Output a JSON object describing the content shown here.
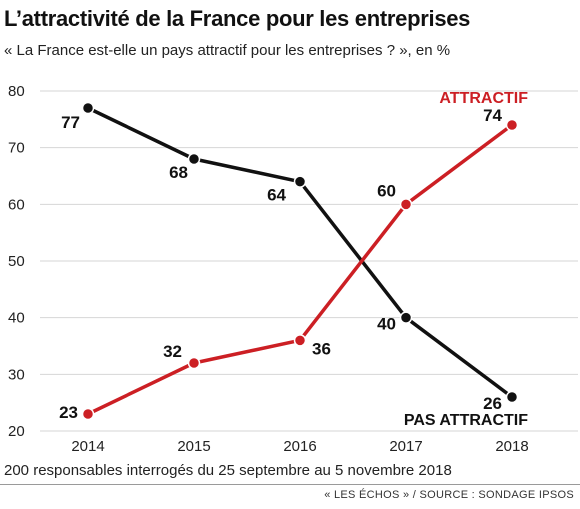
{
  "title": "L’attractivité de la France pour les entreprises",
  "subtitle": "« La France est-elle un pays attractif pour les entreprises ? », en %",
  "note": "200 responsables interrogés du 25 septembre au 5 novembre 2018",
  "source": "« LES ÉCHOS » / SOURCE : SONDAGE IPSOS",
  "chart_data": {
    "type": "line",
    "x": [
      2014,
      2015,
      2016,
      2017,
      2018
    ],
    "xlabel": "",
    "ylabel": "",
    "ylim": [
      20,
      80
    ],
    "yticks": [
      20,
      30,
      40,
      50,
      60,
      70,
      80
    ],
    "grid": true,
    "series": [
      {
        "name": "PAS ATTRACTIF",
        "color": "#111111",
        "values": [
          77,
          68,
          64,
          40,
          26
        ]
      },
      {
        "name": "ATTRACTIF",
        "color": "#cc1f24",
        "values": [
          23,
          32,
          36,
          60,
          74
        ]
      }
    ]
  }
}
